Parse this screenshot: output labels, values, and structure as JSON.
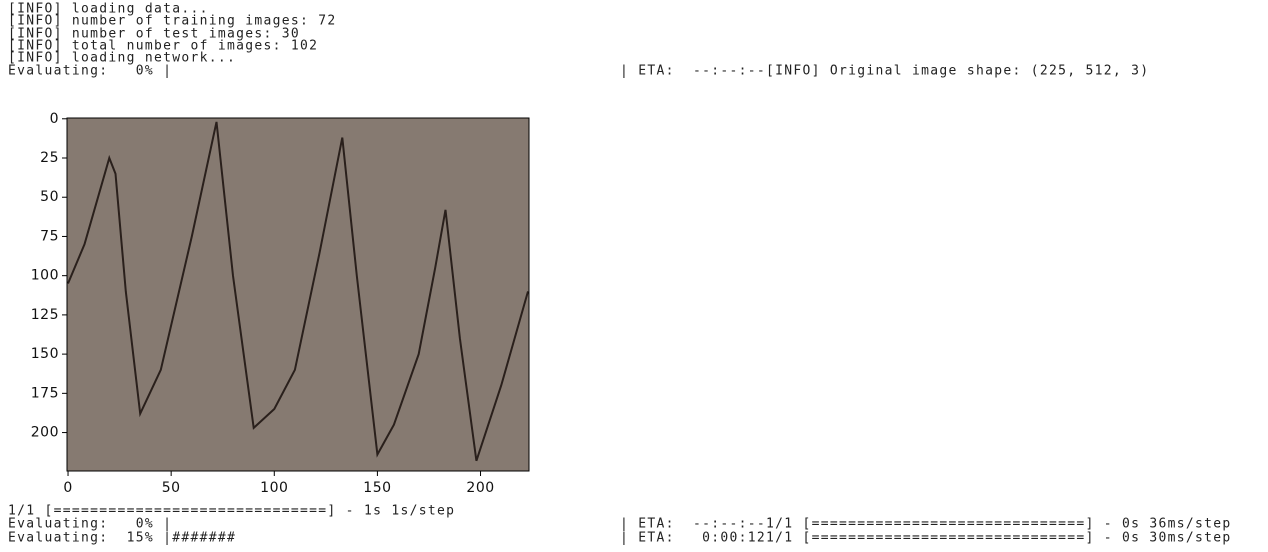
{
  "console_top": [
    "[INFO] loading data...",
    "[INFO] number of training images: 72",
    "[INFO] number of test images: 30",
    "[INFO] total number of images: 102",
    "[INFO] loading network..."
  ],
  "progress_1": {
    "left": "Evaluating:   0% |",
    "right": "| ETA:  --:--:--[INFO] Original image shape: (225, 512, 3)"
  },
  "plot": {
    "xlim": [
      -0.5,
      223.5
    ],
    "ylim": [
      224.5,
      -0.5
    ],
    "xticks": [
      0,
      50,
      100,
      150,
      200
    ],
    "yticks": [
      0,
      25,
      50,
      75,
      100,
      125,
      150,
      175,
      200
    ]
  },
  "console_bottom": {
    "step_line": "1/1 [==============================] - 1s 1s/step",
    "progress_2": {
      "left": "Evaluating:   0% |",
      "right": "| ETA:  --:--:--1/1 [==============================] - 0s 36ms/step"
    },
    "progress_3": {
      "left": "Evaluating:  15% |#######",
      "right": "| ETA:   0:00:121/1 [==============================] - 0s 30ms/step"
    }
  }
}
